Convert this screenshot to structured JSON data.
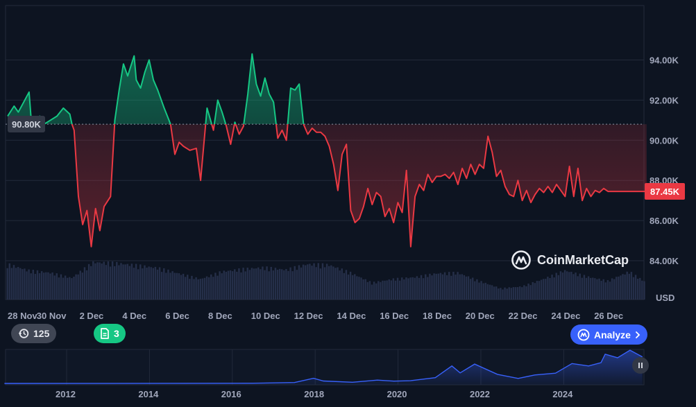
{
  "chart_data": [
    {
      "type": "line",
      "title": "",
      "xlabel": "",
      "ylabel": "",
      "y_unit_label": "USD",
      "ylim": [
        83000,
        95500
      ],
      "y_ticks": [
        "84.00K",
        "86.00K",
        "88.00K",
        "90.00K",
        "92.00K",
        "94.00K"
      ],
      "y_tick_values": [
        84000,
        86000,
        88000,
        90000,
        92000,
        94000
      ],
      "x_ticks": [
        "28 Nov",
        "30 Nov",
        "2 Dec",
        "4 Dec",
        "6 Dec",
        "8 Dec",
        "10 Dec",
        "12 Dec",
        "14 Dec",
        "16 Dec",
        "18 Dec",
        "20 Dec",
        "22 Dec",
        "24 Dec",
        "26 Dec"
      ],
      "x_tick_days": [
        0,
        2,
        4,
        6,
        8,
        10,
        12,
        14,
        16,
        18,
        20,
        22,
        24,
        26,
        28
      ],
      "xlim_days": [
        0,
        29.8
      ],
      "reference_value": 90800,
      "reference_label": "90.80K",
      "last_value": 87450,
      "last_label": "87.45K",
      "above_color": "#16c784",
      "below_color": "#ea3943",
      "grid": true,
      "series": [
        {
          "x_days": [
            0.0,
            0.3,
            0.5,
            0.7,
            1.0,
            1.1,
            1.3,
            1.5,
            1.7,
            2.0,
            2.3,
            2.6,
            2.9,
            3.0,
            3.1,
            3.3,
            3.5,
            3.7,
            3.9,
            4.1,
            4.3,
            4.5,
            4.8,
            5.0,
            5.2,
            5.4,
            5.6,
            5.9,
            6.0,
            6.2,
            6.4,
            6.6,
            6.8,
            7.0,
            7.3,
            7.6,
            7.8,
            8.0,
            8.2,
            8.5,
            8.8,
            9.0,
            9.3,
            9.6,
            9.8,
            10.0,
            10.2,
            10.4,
            10.6,
            10.8,
            11.0,
            11.2,
            11.4,
            11.6,
            11.8,
            12.0,
            12.2,
            12.4,
            12.6,
            12.8,
            13.0,
            13.2,
            13.4,
            13.6,
            13.8,
            14.0,
            14.2,
            14.4,
            14.6,
            14.8,
            15.0,
            15.2,
            15.4,
            15.6,
            15.8,
            16.0,
            16.2,
            16.4,
            16.6,
            16.8,
            17.0,
            17.2,
            17.4,
            17.6,
            17.8,
            18.0,
            18.2,
            18.4,
            18.6,
            18.8,
            19.0,
            19.2,
            19.4,
            19.6,
            19.8,
            20.0,
            20.2,
            20.4,
            20.6,
            20.8,
            21.0,
            21.2,
            21.4,
            21.6,
            21.8,
            22.0,
            22.2,
            22.4,
            22.6,
            22.8,
            23.0,
            23.2,
            23.4,
            23.6,
            23.8,
            24.0,
            24.2,
            24.4,
            24.6,
            24.8,
            25.0,
            25.2,
            25.4,
            25.6,
            25.8,
            26.0,
            26.2,
            26.4,
            26.6,
            26.8,
            27.0,
            27.2,
            27.4,
            27.6,
            27.8,
            28.0,
            28.2,
            28.4,
            28.6,
            28.8,
            29.0,
            29.2,
            29.5,
            29.8
          ],
          "values": [
            91200,
            91700,
            91400,
            91800,
            92400,
            91000,
            90900,
            91200,
            90800,
            91000,
            91200,
            91600,
            91300,
            90800,
            90500,
            87200,
            85800,
            86500,
            84700,
            86600,
            85500,
            86700,
            87200,
            91000,
            92500,
            93800,
            93200,
            94200,
            93000,
            92600,
            93400,
            94000,
            93000,
            92500,
            91600,
            90800,
            89300,
            89900,
            89700,
            89500,
            89600,
            88000,
            91600,
            90500,
            92000,
            91400,
            90700,
            89800,
            90900,
            90300,
            90700,
            92300,
            94300,
            92800,
            92200,
            93100,
            92300,
            91900,
            90100,
            90500,
            90000,
            92600,
            92500,
            92800,
            90800,
            90300,
            90600,
            90400,
            90400,
            90200,
            89700,
            88800,
            87500,
            89300,
            89800,
            86500,
            85900,
            86100,
            86700,
            87600,
            86800,
            87400,
            87200,
            86200,
            86600,
            85900,
            86900,
            86400,
            88500,
            84700,
            87200,
            87800,
            87500,
            88300,
            87900,
            88200,
            88200,
            88300,
            88100,
            88400,
            87800,
            88600,
            88100,
            88800,
            88300,
            88800,
            88600,
            90200,
            89400,
            88200,
            88500,
            87700,
            87300,
            87200,
            88000,
            87000,
            87500,
            86900,
            87300,
            87600,
            87400,
            87700,
            87400,
            87800,
            87500,
            87200,
            88700,
            87200,
            88600,
            87000,
            87600,
            87200,
            87500,
            87400,
            87600,
            87450,
            87450,
            87450,
            87450,
            87450,
            87450,
            87450,
            87450,
            87450
          ],
          "note_partial": true
        }
      ],
      "volume": {
        "x_days": [
          0,
          1,
          2,
          3,
          4,
          5,
          6,
          7,
          8,
          9,
          10,
          11,
          12,
          13,
          14,
          15,
          16,
          17,
          18,
          19,
          20,
          21,
          22,
          23,
          24,
          25,
          26,
          27,
          28,
          29,
          29.8
        ],
        "values": [
          0.95,
          0.78,
          0.72,
          0.58,
          1.0,
          0.98,
          0.92,
          0.85,
          0.7,
          0.55,
          0.75,
          0.82,
          0.86,
          0.8,
          0.95,
          0.93,
          0.72,
          0.45,
          0.55,
          0.6,
          0.7,
          0.72,
          0.5,
          0.3,
          0.35,
          0.55,
          0.78,
          0.62,
          0.5,
          0.75,
          0.45
        ],
        "color": "#2a3450"
      }
    },
    {
      "type": "area",
      "title": "",
      "xlabel": "",
      "ylabel": "",
      "x_ticks": [
        "2012",
        "2014",
        "2016",
        "2018",
        "2020",
        "2022",
        "2024"
      ],
      "x_tick_values": [
        2012,
        2014,
        2016,
        2018,
        2020,
        2022,
        2024
      ],
      "xlim": [
        2010.5,
        2025.9
      ],
      "ylim": [
        0,
        108000
      ],
      "grid": true,
      "series": [
        {
          "x": [
            2010.5,
            2013.0,
            2016.5,
            2017.5,
            2017.96,
            2018.2,
            2018.9,
            2019.5,
            2019.9,
            2020.3,
            2020.9,
            2021.3,
            2021.5,
            2021.85,
            2022.4,
            2022.9,
            2023.3,
            2023.8,
            2024.2,
            2024.6,
            2024.9,
            2025.0,
            2025.3,
            2025.6,
            2025.9
          ],
          "values": [
            0,
            200,
            600,
            3000,
            17000,
            8000,
            4000,
            11000,
            7500,
            9000,
            19000,
            58000,
            35000,
            64000,
            30000,
            16500,
            28000,
            34000,
            66000,
            58000,
            69000,
            97000,
            85000,
            110000,
            88000
          ],
          "color": "#3861fb"
        }
      ]
    }
  ],
  "ui": {
    "alerts_count": "125",
    "docs_count": "3",
    "analyze_label": "Analyze",
    "watermark": "CoinMarketCap",
    "clock_icon": "history-icon",
    "doc_icon": "document-icon",
    "logo_icon": "coinmarketcap-logo-icon",
    "pause_icon": "pause-icon",
    "analyze_icon": "chevron-right-icon"
  }
}
